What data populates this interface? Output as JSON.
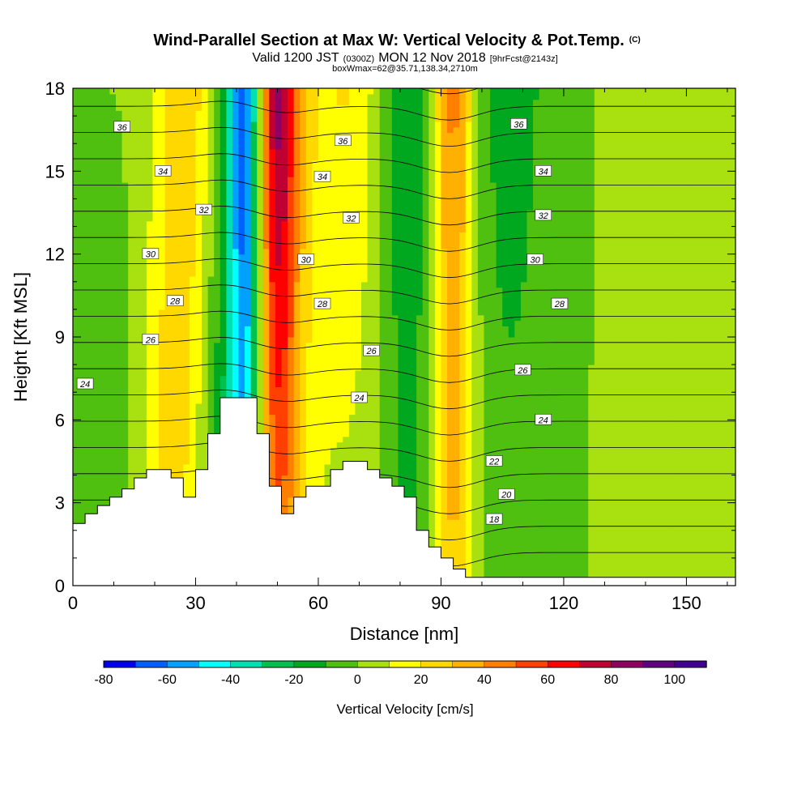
{
  "chart_data": {
    "type": "heatmap",
    "title": "Wind-Parallel Section at Max W: Vertical Velocity & Pot.Temp.",
    "title_mark": "(C)",
    "subtitle": {
      "lead": "Valid 1200 JST",
      "utc": "(0300Z)",
      "date": "MON 12 Nov 2018",
      "forecast": "[9hrFcst@2143z]"
    },
    "info": "boxWmax=62@35.71,138.34,2710m",
    "xlabel": "Distance [nm]",
    "ylabel": "Height [Kft MSL]",
    "xlim": [
      0,
      162
    ],
    "ylim": [
      0,
      18
    ],
    "xticks": [
      0,
      30,
      60,
      90,
      120,
      150
    ],
    "yticks": [
      0,
      3,
      6,
      9,
      12,
      15,
      18
    ],
    "colorbar": {
      "title": "Vertical Velocity [cm/s]",
      "min": -80,
      "max": 110,
      "step": 10,
      "tick_labels": [
        -80,
        -60,
        -40,
        -20,
        0,
        20,
        40,
        60,
        80,
        100
      ],
      "colors": [
        "#0000ee",
        "#0060ff",
        "#00a0ff",
        "#00ffff",
        "#00e0b0",
        "#00c050",
        "#00a820",
        "#50c010",
        "#a8e010",
        "#ffff00",
        "#ffd800",
        "#ffb000",
        "#ff8000",
        "#ff4000",
        "#ff0000",
        "#c00030",
        "#900060",
        "#600080",
        "#400090"
      ]
    },
    "w_columns": [
      {
        "x": 5,
        "w_top": 0,
        "w_bottom": -10,
        "width": 8
      },
      {
        "x": 23,
        "w_top": 10,
        "w_bottom": 20,
        "width": 6
      },
      {
        "x": 29,
        "w_top": 25,
        "w_bottom": 10,
        "width": 7
      },
      {
        "x": 36,
        "w_top": -10,
        "w_bottom": -20,
        "width": 6
      },
      {
        "x": 42,
        "w_top": -70,
        "w_bottom": -40,
        "width": 4
      },
      {
        "x": 50,
        "w_top": 80,
        "w_bottom": 40,
        "width": 5
      },
      {
        "x": 56,
        "w_top": 15,
        "w_bottom": 10,
        "width": 6
      },
      {
        "x": 67,
        "w_top": 20,
        "w_bottom": 5,
        "width": 8
      },
      {
        "x": 82,
        "w_top": -20,
        "w_bottom": -10,
        "width": 6
      },
      {
        "x": 93,
        "w_top": 45,
        "w_bottom": 30,
        "width": 5
      },
      {
        "x": 107,
        "w_top": -15,
        "w_bottom": -5,
        "width": 10
      },
      {
        "x": 146,
        "w_top": 5,
        "w_bottom": 10,
        "width": 10
      }
    ],
    "terrain": [
      [
        0,
        2.25
      ],
      [
        3,
        2.25
      ],
      [
        3,
        2.6
      ],
      [
        6,
        2.6
      ],
      [
        6,
        2.9
      ],
      [
        9,
        2.9
      ],
      [
        9,
        3.2
      ],
      [
        12,
        3.2
      ],
      [
        12,
        3.5
      ],
      [
        15,
        3.5
      ],
      [
        15,
        3.9
      ],
      [
        18,
        3.9
      ],
      [
        18,
        4.2
      ],
      [
        24,
        4.2
      ],
      [
        24,
        3.9
      ],
      [
        27,
        3.9
      ],
      [
        27,
        3.2
      ],
      [
        30,
        3.2
      ],
      [
        30,
        4.2
      ],
      [
        33,
        4.2
      ],
      [
        33,
        5.5
      ],
      [
        36,
        5.5
      ],
      [
        36,
        6.8
      ],
      [
        45,
        6.8
      ],
      [
        45,
        5.5
      ],
      [
        48,
        5.5
      ],
      [
        48,
        3.6
      ],
      [
        51,
        3.6
      ],
      [
        51,
        2.6
      ],
      [
        54,
        2.6
      ],
      [
        54,
        3.2
      ],
      [
        57,
        3.2
      ],
      [
        57,
        3.6
      ],
      [
        63,
        3.6
      ],
      [
        63,
        4.2
      ],
      [
        66,
        4.2
      ],
      [
        66,
        4.5
      ],
      [
        72,
        4.5
      ],
      [
        72,
        4.2
      ],
      [
        75,
        4.2
      ],
      [
        75,
        3.9
      ],
      [
        78,
        3.9
      ],
      [
        78,
        3.6
      ],
      [
        81,
        3.6
      ],
      [
        81,
        3.2
      ],
      [
        84,
        3.2
      ],
      [
        84,
        2.0
      ],
      [
        87,
        2.0
      ],
      [
        87,
        1.4
      ],
      [
        90,
        1.4
      ],
      [
        90,
        1.0
      ],
      [
        93,
        1.0
      ],
      [
        93,
        0.6
      ],
      [
        96,
        0.6
      ],
      [
        96,
        0.3
      ],
      [
        162,
        0.3
      ]
    ],
    "theta_levels": [
      18,
      19,
      20,
      21,
      22,
      23,
      24,
      25,
      26,
      27,
      28,
      29,
      30,
      31,
      32,
      33,
      34,
      35,
      36,
      37,
      38
    ],
    "theta_labels": [
      {
        "text": "36",
        "x": 12,
        "y": 16.6
      },
      {
        "text": "34",
        "x": 22,
        "y": 15.0
      },
      {
        "text": "32",
        "x": 32,
        "y": 13.6
      },
      {
        "text": "30",
        "x": 19,
        "y": 12.0
      },
      {
        "text": "28",
        "x": 25,
        "y": 10.3
      },
      {
        "text": "26",
        "x": 19,
        "y": 8.9
      },
      {
        "text": "24",
        "x": 3,
        "y": 7.3
      },
      {
        "text": "36",
        "x": 66,
        "y": 16.1
      },
      {
        "text": "34",
        "x": 61,
        "y": 14.8
      },
      {
        "text": "32",
        "x": 68,
        "y": 13.3
      },
      {
        "text": "30",
        "x": 57,
        "y": 11.8
      },
      {
        "text": "28",
        "x": 61,
        "y": 10.2
      },
      {
        "text": "26",
        "x": 73,
        "y": 8.5
      },
      {
        "text": "24",
        "x": 70,
        "y": 6.8
      },
      {
        "text": "36",
        "x": 109,
        "y": 16.7
      },
      {
        "text": "34",
        "x": 115,
        "y": 15.0
      },
      {
        "text": "32",
        "x": 115,
        "y": 13.4
      },
      {
        "text": "30",
        "x": 113,
        "y": 11.8
      },
      {
        "text": "28",
        "x": 119,
        "y": 10.2
      },
      {
        "text": "26",
        "x": 110,
        "y": 7.8
      },
      {
        "text": "24",
        "x": 115,
        "y": 6.0
      },
      {
        "text": "22",
        "x": 103,
        "y": 4.5
      },
      {
        "text": "20",
        "x": 106,
        "y": 3.3
      },
      {
        "text": "18",
        "x": 103,
        "y": 2.4
      }
    ]
  }
}
